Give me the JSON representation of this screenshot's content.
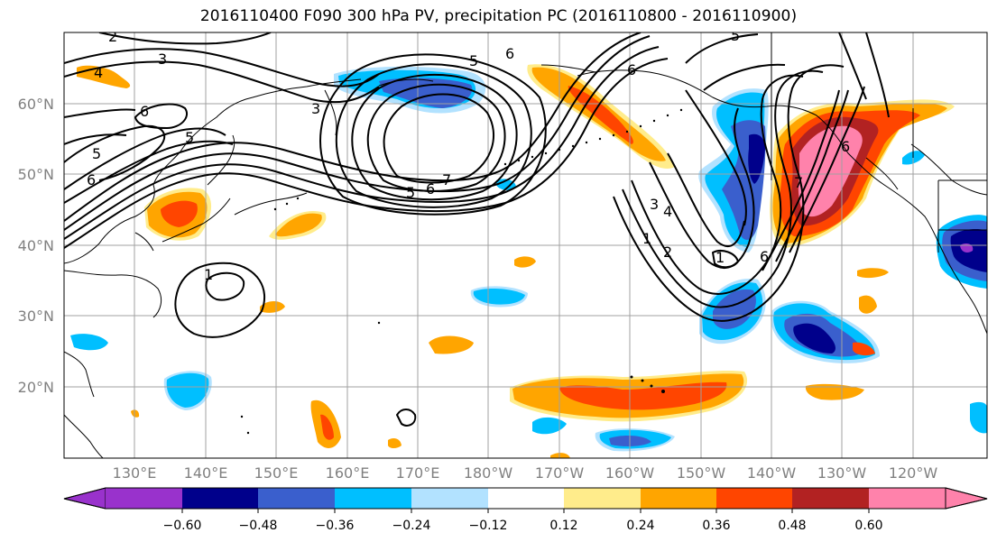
{
  "title": "2016110400 F090 300 hPa PV, precipitation PC (2016110800 - 2016110900)",
  "map": {
    "lon_labels": [
      "130°E",
      "140°E",
      "150°E",
      "160°E",
      "170°E",
      "180°W",
      "170°W",
      "160°W",
      "150°W",
      "140°W",
      "130°W",
      "120°W"
    ],
    "lat_labels": [
      "60°N",
      "50°N",
      "40°N",
      "30°N",
      "20°N"
    ],
    "contour_labels": [
      "2",
      "3",
      "4",
      "5",
      "6",
      "5",
      "6",
      "6",
      "5",
      "3",
      "5",
      "6",
      "5",
      "6",
      "7",
      "3",
      "4",
      "1",
      "2",
      "1",
      "6",
      "7",
      "6",
      "1"
    ]
  },
  "colorbar": {
    "tick_labels": [
      "−0.60",
      "−0.48",
      "−0.36",
      "−0.24",
      "−0.12",
      "0.12",
      "0.24",
      "0.36",
      "0.48",
      "0.60"
    ],
    "colors": [
      "#9932cc",
      "#00008b",
      "#3a5fcd",
      "#00bfff",
      "#b2e2ff",
      "#ffffff",
      "#ffec8b",
      "#ffa500",
      "#ff4500",
      "#b22222",
      "#ff82ab",
      "#ff82ab"
    ]
  },
  "palette": {
    "neg3": "#00008b",
    "neg2": "#3a5fcd",
    "neg1": "#00bfff",
    "neg0": "#b2e2ff",
    "pos0": "#ffec8b",
    "pos1": "#ffa500",
    "pos2": "#ff4500",
    "pos3": "#b22222",
    "pos4": "#ff82ab",
    "purple": "#9932cc",
    "grid": "#a0a0a0",
    "axis_label": "#808080"
  }
}
